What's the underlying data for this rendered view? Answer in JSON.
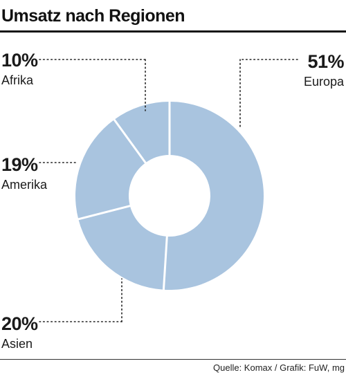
{
  "title": "Umsatz nach Regionen",
  "source": "Quelle: Komax / Grafik: FuW, mg",
  "colors": {
    "slice": "#a9c4df",
    "separator": "#ffffff",
    "leader": "#222222",
    "text": "#1a1a1a"
  },
  "chart_data": {
    "type": "pie",
    "style": "donut",
    "categories": [
      "Europa",
      "Asien",
      "Amerika",
      "Afrika"
    ],
    "values": [
      51,
      20,
      19,
      10
    ],
    "value_labels": [
      "51%",
      "20%",
      "19%",
      "10%"
    ],
    "legend": "none",
    "grid": false
  }
}
